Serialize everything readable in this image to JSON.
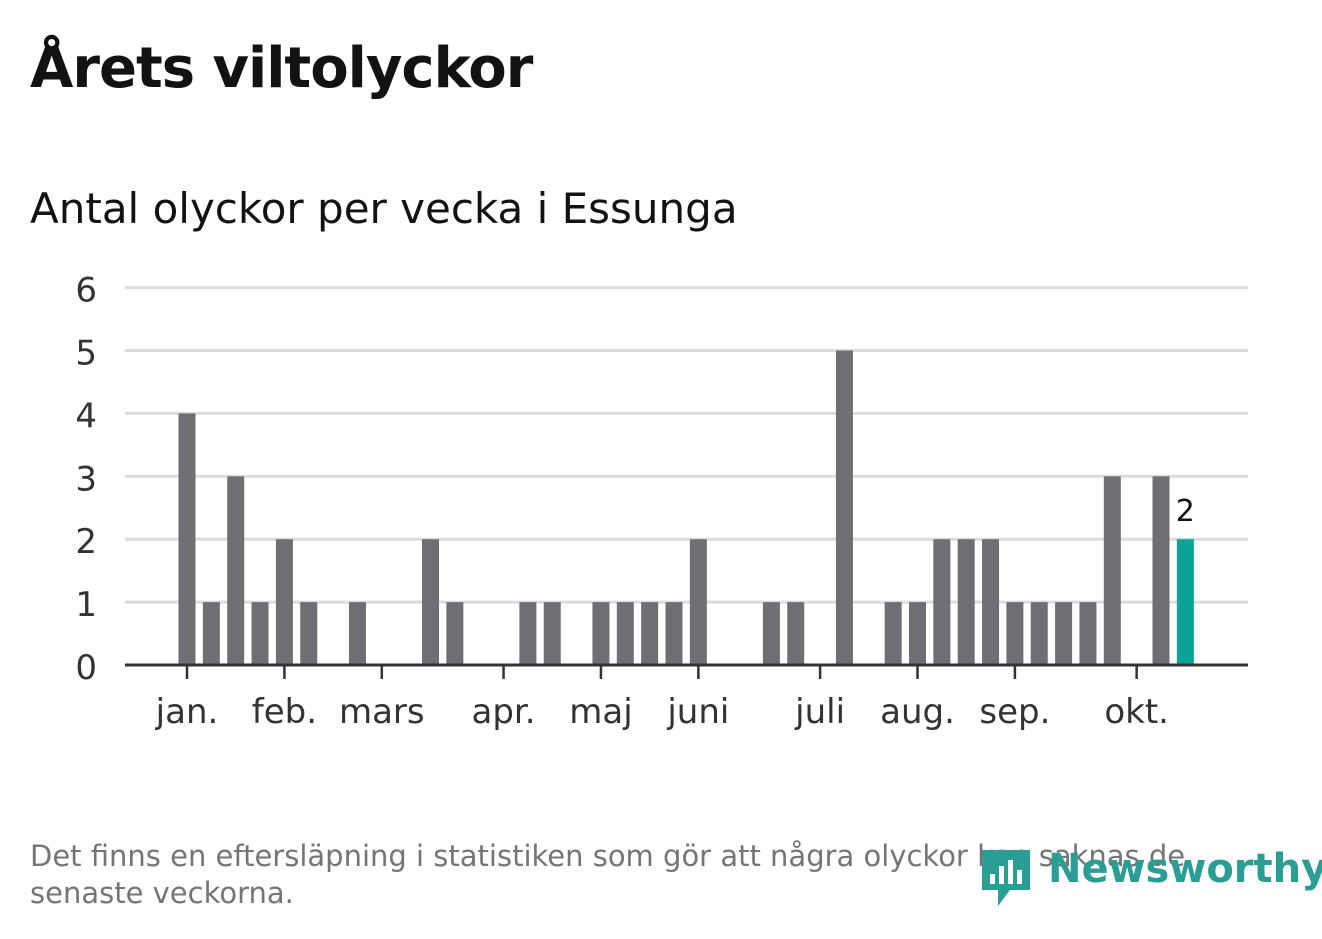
{
  "title": "Årets viltolyckor",
  "subtitle": "Antal olyckor per vecka i Essunga",
  "footnote": "Det finns en eftersläpning i statistiken som gör att några olyckor kan saknas de senaste veckorna.",
  "brand": {
    "name": "Newsworthy",
    "icon": "newsworthy-logo-icon",
    "color": "#2a9d95"
  },
  "colors": {
    "bar": "#6f6e73",
    "highlight": "#0aa39a",
    "grid": "#dcdcdc",
    "axis": "#333333"
  },
  "chart_data": {
    "type": "bar",
    "title": "",
    "xlabel": "",
    "ylabel": "",
    "ylim": [
      0,
      6
    ],
    "yticks": [
      "0",
      "1",
      "2",
      "3",
      "4",
      "5",
      "6"
    ],
    "grid": true,
    "legend": "none",
    "weeks": [
      1,
      2,
      3,
      4,
      5,
      6,
      7,
      8,
      9,
      10,
      11,
      12,
      13,
      14,
      15,
      16,
      17,
      18,
      19,
      20,
      21,
      22,
      23,
      24,
      25,
      26,
      27,
      28,
      29,
      30,
      31,
      32,
      33,
      34,
      35,
      36,
      37,
      38,
      39,
      40,
      41,
      42,
      43
    ],
    "values": [
      4,
      1,
      3,
      1,
      2,
      1,
      0,
      1,
      0,
      0,
      2,
      1,
      0,
      0,
      1,
      1,
      0,
      1,
      1,
      1,
      1,
      2,
      0,
      0,
      1,
      1,
      0,
      5,
      0,
      1,
      1,
      2,
      2,
      2,
      1,
      1,
      1,
      1,
      3,
      0,
      3,
      2,
      0
    ],
    "highlight_week": 42,
    "highlight_label": "2",
    "month_ticks": [
      {
        "label": "jan.",
        "week": 1
      },
      {
        "label": "feb.",
        "week": 5
      },
      {
        "label": "mars",
        "week": 9
      },
      {
        "label": "apr.",
        "week": 14
      },
      {
        "label": "maj",
        "week": 18
      },
      {
        "label": "juni",
        "week": 22
      },
      {
        "label": "juli",
        "week": 27
      },
      {
        "label": "aug.",
        "week": 31
      },
      {
        "label": "sep.",
        "week": 35
      },
      {
        "label": "okt.",
        "week": 40
      }
    ]
  }
}
